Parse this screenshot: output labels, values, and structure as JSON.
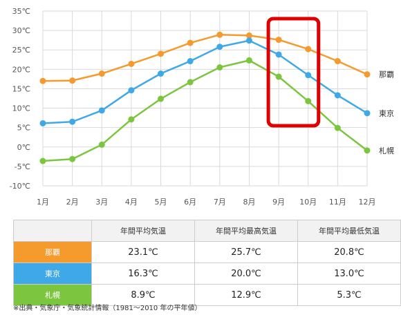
{
  "chart_data": {
    "type": "line",
    "title": "",
    "xlabel": "",
    "ylabel": "",
    "categories": [
      "1月",
      "2月",
      "3月",
      "4月",
      "5月",
      "6月",
      "7月",
      "8月",
      "9月",
      "10月",
      "11月",
      "12月"
    ],
    "y_ticks": [
      "35℃",
      "30℃",
      "25℃",
      "20℃",
      "15℃",
      "10℃",
      "5℃",
      "0℃",
      "-5℃",
      "-10℃"
    ],
    "ylim": [
      -10,
      35
    ],
    "grid": true,
    "series": [
      {
        "name": "那覇",
        "color": "#f59a2c",
        "values": [
          17.0,
          17.1,
          18.9,
          21.4,
          24.0,
          26.8,
          28.9,
          28.7,
          27.6,
          25.2,
          22.1,
          18.7
        ]
      },
      {
        "name": "東京",
        "color": "#3fa9e8",
        "values": [
          6.1,
          6.5,
          9.4,
          14.6,
          18.9,
          22.1,
          25.8,
          27.4,
          23.8,
          18.5,
          13.3,
          8.7
        ]
      },
      {
        "name": "札幌",
        "color": "#7cc63f",
        "values": [
          -3.6,
          -3.1,
          0.6,
          7.1,
          12.4,
          16.7,
          20.5,
          22.3,
          18.1,
          11.8,
          4.9,
          -0.9
        ]
      }
    ],
    "highlight_categories": [
      "9月",
      "10月"
    ],
    "highlight_color": "#e00000"
  },
  "table": {
    "headers": [
      "年間平均気温",
      "年間平均最高気温",
      "年間平均最低気温"
    ],
    "rows": [
      {
        "city": "那覇",
        "color": "#f59a2c",
        "values": [
          "23.1℃",
          "25.7℃",
          "20.8℃"
        ]
      },
      {
        "city": "東京",
        "color": "#3fa9e8",
        "values": [
          "16.3℃",
          "20.0℃",
          "13.0℃"
        ]
      },
      {
        "city": "札幌",
        "color": "#7cc63f",
        "values": [
          "8.9℃",
          "12.9℃",
          "5.3℃"
        ]
      }
    ]
  },
  "footnote": "※出典・気象庁・気象統計情報（1981〜2010 年の平年値）"
}
